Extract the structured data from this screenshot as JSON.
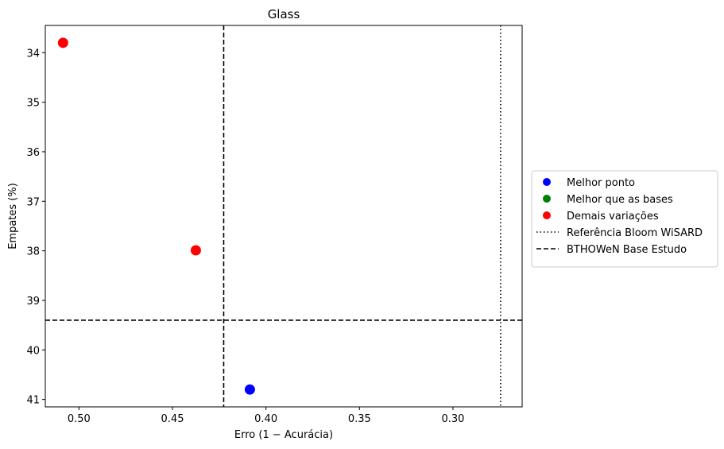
{
  "chart_data": {
    "type": "scatter",
    "title": "Glass",
    "xlabel": "Erro (1 − Acurácia)",
    "ylabel": "Empates (%)",
    "xlim": [
      0.518,
      0.263
    ],
    "ylim": [
      41.15,
      33.45
    ],
    "x_inverted": true,
    "y_inverted": true,
    "xticks": [
      0.5,
      0.45,
      0.4,
      0.35,
      0.3
    ],
    "xtick_labels": [
      "0.50",
      "0.45",
      "0.40",
      "0.35",
      "0.30"
    ],
    "yticks": [
      34,
      35,
      36,
      37,
      38,
      39,
      40,
      41
    ],
    "ytick_labels": [
      "34",
      "35",
      "36",
      "37",
      "38",
      "39",
      "40",
      "41"
    ],
    "grid": false,
    "legend_position": "outside-right",
    "series": [
      {
        "name": "Melhor ponto",
        "color": "#0000ff",
        "points": [
          {
            "x": 0.4086,
            "y": 40.8
          }
        ]
      },
      {
        "name": "Melhor que as bases",
        "color": "#008000",
        "points": []
      },
      {
        "name": "Demais variações",
        "color": "#ff0000",
        "points": [
          {
            "x": 0.5085,
            "y": 33.8
          },
          {
            "x": 0.4375,
            "y": 37.99
          }
        ]
      }
    ],
    "reference_lines": [
      {
        "name": "Referência Bloom WiSARD",
        "style": "dotted",
        "color": "#000000",
        "vertical_x": 0.2745
      },
      {
        "name": "BTHOWeN Base Estudo",
        "style": "dashed",
        "color": "#000000",
        "vertical_x": 0.4226,
        "horizontal_y": 39.4
      }
    ]
  }
}
